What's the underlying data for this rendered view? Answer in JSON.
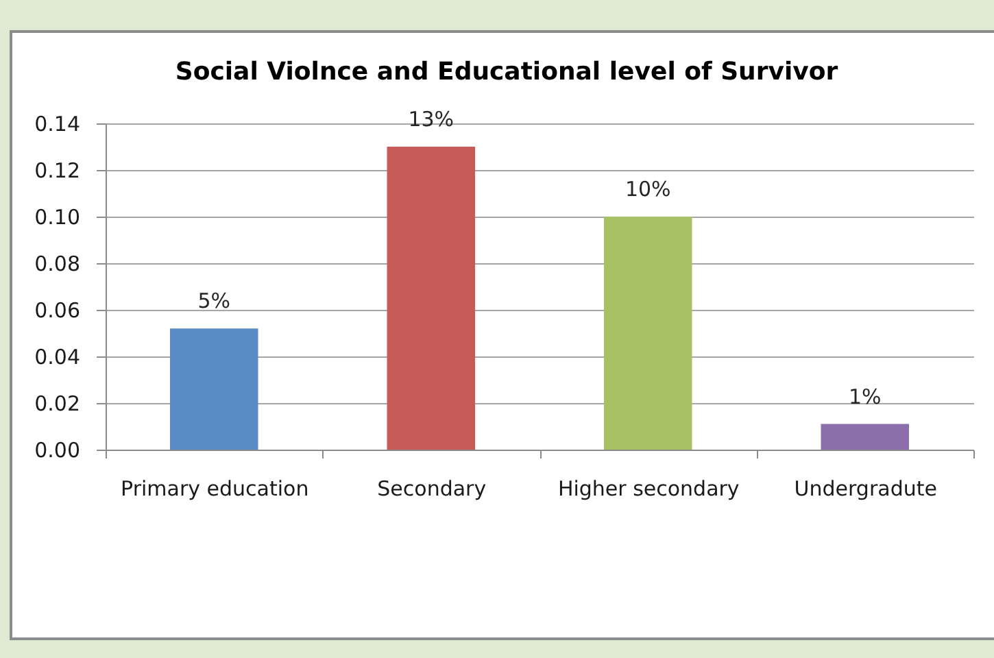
{
  "chart_data": {
    "type": "bar",
    "title": "Social Violnce and Educational level of Survivor",
    "categories": [
      "Primary education",
      "Secondary",
      "Higher secondary",
      "Undergradute"
    ],
    "values": [
      0.052,
      0.13,
      0.1,
      0.011
    ],
    "colors": [
      "#5b8bc5",
      "#c75b58",
      "#a7c265",
      "#8a6faa"
    ],
    "value_labels": [
      "5%",
      "13%",
      "10%",
      "1%"
    ],
    "ylim": [
      0,
      0.14
    ],
    "yticks": [
      {
        "value": 0,
        "label": "0.00"
      },
      {
        "value": 0.02,
        "label": "0.02"
      },
      {
        "value": 0.04,
        "label": "0.04"
      },
      {
        "value": 0.06,
        "label": "0.06"
      },
      {
        "value": 0.08,
        "label": "0.08"
      },
      {
        "value": 0.1,
        "label": "0.10"
      },
      {
        "value": 0.12,
        "label": "0.12"
      },
      {
        "value": 0.14,
        "label": "0.14"
      }
    ],
    "grid": "y"
  }
}
